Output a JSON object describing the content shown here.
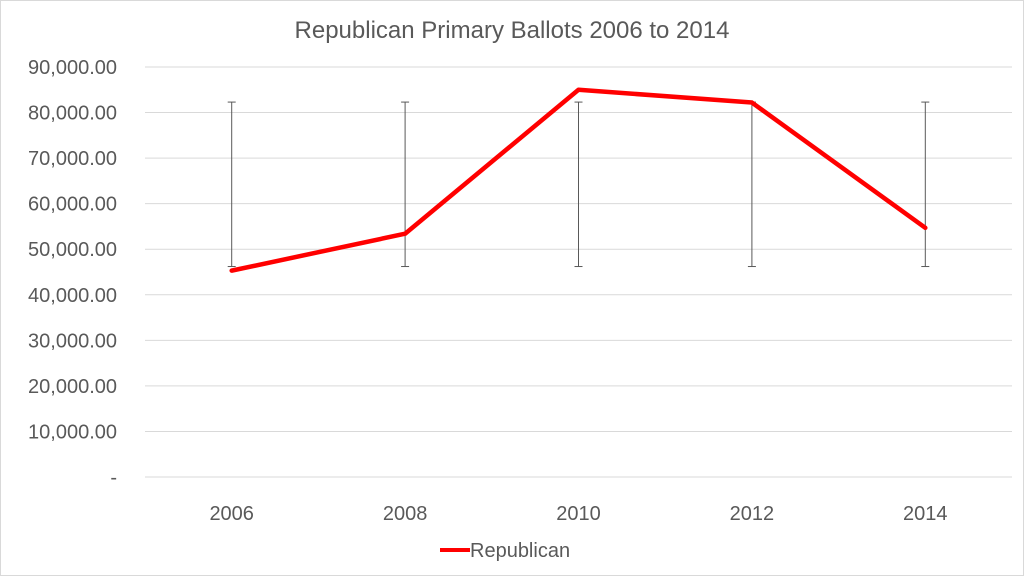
{
  "chart_data": {
    "type": "line",
    "title": "Republican Primary Ballots 2006 to 2014",
    "categories": [
      "2006",
      "2008",
      "2010",
      "2012",
      "2014"
    ],
    "series": [
      {
        "name": "Republican",
        "values": [
          45300,
          53400,
          85000,
          82200,
          54700
        ],
        "error_bars": {
          "low": 46200,
          "high": 82300
        }
      }
    ],
    "ylim": [
      0,
      90000
    ],
    "y_ticks": [
      0,
      10000,
      20000,
      30000,
      40000,
      50000,
      60000,
      70000,
      80000,
      90000
    ],
    "y_tick_labels": [
      "-",
      "10,000.00",
      "20,000.00",
      "30,000.00",
      "40,000.00",
      "50,000.00",
      "60,000.00",
      "70,000.00",
      "80,000.00",
      "90,000.00"
    ],
    "grid": true,
    "legend": "bottom",
    "colors": {
      "series": "#ff0000",
      "grid": "#d9d9d9",
      "error_bar": "#595959",
      "text": "#595959"
    }
  }
}
